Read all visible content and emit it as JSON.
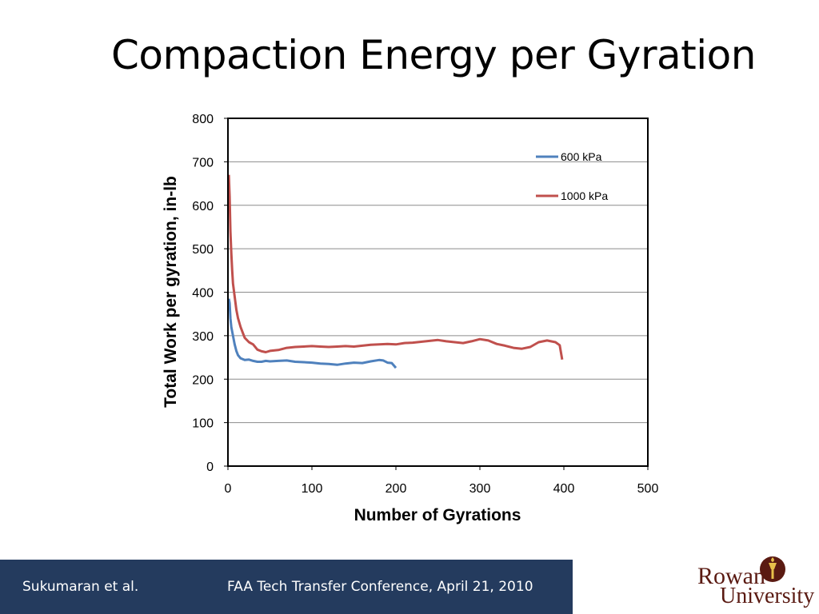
{
  "slide": {
    "title": "Compaction Energy per Gyration"
  },
  "footer": {
    "left_text": "Sukumaran et al.",
    "right_text": "FAA Tech Transfer Conference,  April 21, 2010"
  },
  "logo": {
    "text_line1": "Rowan",
    "text_line2": "University"
  },
  "colors": {
    "footer_bg": "#243b5e",
    "series_600": "#4f81bd",
    "series_1000": "#c0504d",
    "logo": "#5a1a12"
  },
  "chart_data": {
    "type": "line",
    "title": "",
    "xlabel": "Number of Gyrations",
    "ylabel": "Total Work per gyration, in-lb",
    "xlim": [
      0,
      500
    ],
    "ylim": [
      0,
      800
    ],
    "xticks": [
      0,
      100,
      200,
      300,
      400,
      500
    ],
    "yticks": [
      0,
      100,
      200,
      300,
      400,
      500,
      600,
      700,
      800
    ],
    "grid": "horizontal",
    "legend_position": "top-right",
    "series": [
      {
        "name": "600 kPa",
        "color": "#4f81bd",
        "x": [
          1,
          2,
          3,
          4,
          6,
          8,
          10,
          12,
          15,
          20,
          25,
          30,
          35,
          40,
          45,
          50,
          60,
          70,
          80,
          90,
          100,
          110,
          120,
          130,
          140,
          150,
          160,
          170,
          180,
          185,
          190,
          195,
          200
        ],
        "y": [
          385,
          375,
          340,
          320,
          300,
          280,
          265,
          255,
          248,
          244,
          245,
          242,
          240,
          240,
          242,
          241,
          242,
          243,
          240,
          239,
          238,
          236,
          235,
          233,
          236,
          238,
          237,
          241,
          244,
          243,
          238,
          237,
          226
        ]
      },
      {
        "name": "1000 kPa",
        "color": "#c0504d",
        "x": [
          1,
          2,
          3,
          4,
          5,
          6,
          8,
          10,
          12,
          15,
          18,
          20,
          25,
          30,
          35,
          40,
          45,
          50,
          60,
          70,
          80,
          90,
          100,
          110,
          120,
          130,
          140,
          150,
          160,
          170,
          180,
          190,
          200,
          210,
          220,
          230,
          240,
          250,
          260,
          270,
          280,
          290,
          300,
          310,
          320,
          330,
          340,
          350,
          360,
          370,
          380,
          390,
          395,
          398
        ],
        "y": [
          670,
          620,
          540,
          490,
          450,
          420,
          390,
          360,
          340,
          320,
          305,
          295,
          285,
          280,
          268,
          264,
          262,
          265,
          267,
          272,
          274,
          275,
          276,
          275,
          274,
          275,
          276,
          275,
          277,
          279,
          280,
          281,
          280,
          283,
          284,
          286,
          288,
          290,
          287,
          285,
          283,
          287,
          292,
          289,
          281,
          277,
          272,
          270,
          274,
          285,
          289,
          285,
          278,
          245
        ]
      }
    ]
  }
}
